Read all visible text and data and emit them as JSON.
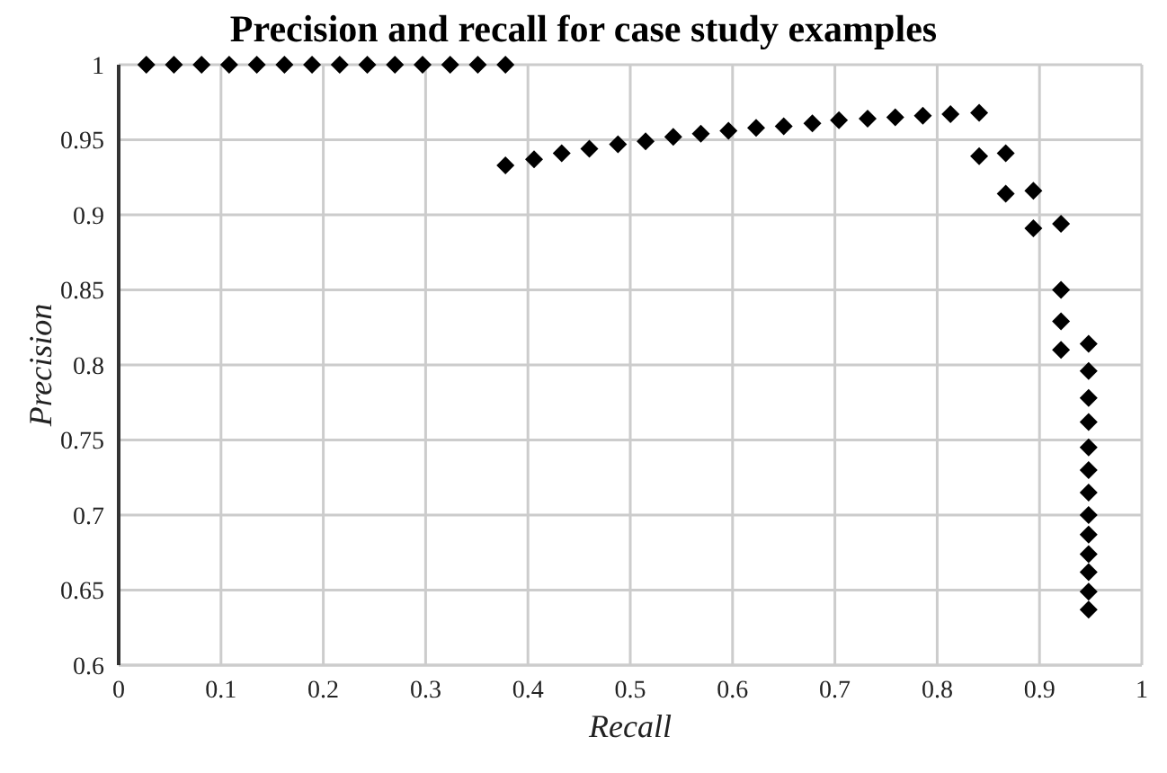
{
  "chart_data": {
    "type": "scatter",
    "title": "Precision and recall for case study examples",
    "xlabel": "Recall",
    "ylabel": "Precision",
    "xlim": [
      0,
      1
    ],
    "xticks": [
      0,
      0.1,
      0.2,
      0.3,
      0.4,
      0.5,
      0.6,
      0.7,
      0.8,
      0.9,
      1
    ],
    "ylim": [
      0.6,
      1
    ],
    "yticks": [
      0.6,
      0.65,
      0.7,
      0.75,
      0.8,
      0.85,
      0.9,
      0.95,
      1
    ],
    "grid": true,
    "marker": "diamond",
    "legend": false,
    "series": [
      {
        "color": "#000000",
        "x": [
          0.027,
          0.054,
          0.081,
          0.108,
          0.135,
          0.162,
          0.189,
          0.216,
          0.243,
          0.27,
          0.297,
          0.324,
          0.351,
          0.378,
          0.378,
          0.406,
          0.433,
          0.46,
          0.488,
          0.515,
          0.542,
          0.569,
          0.596,
          0.623,
          0.65,
          0.678,
          0.704,
          0.732,
          0.759,
          0.786,
          0.813,
          0.841,
          0.841,
          0.867,
          0.867,
          0.894,
          0.894,
          0.921,
          0.921,
          0.921,
          0.921,
          0.948,
          0.948,
          0.948,
          0.948,
          0.948,
          0.948,
          0.948,
          0.948,
          0.948,
          0.948,
          0.948,
          0.948,
          0.948
        ],
        "values": [
          1,
          1,
          1,
          1,
          1,
          1,
          1,
          1,
          1,
          1,
          1,
          1,
          1,
          1,
          0.933,
          0.937,
          0.941,
          0.944,
          0.947,
          0.949,
          0.952,
          0.954,
          0.956,
          0.958,
          0.959,
          0.961,
          0.963,
          0.964,
          0.965,
          0.966,
          0.967,
          0.968,
          0.939,
          0.941,
          0.914,
          0.916,
          0.891,
          0.894,
          0.85,
          0.829,
          0.81,
          0.814,
          0.796,
          0.778,
          0.762,
          0.745,
          0.73,
          0.715,
          0.7,
          0.687,
          0.674,
          0.662,
          0.649,
          0.637
        ]
      }
    ]
  }
}
